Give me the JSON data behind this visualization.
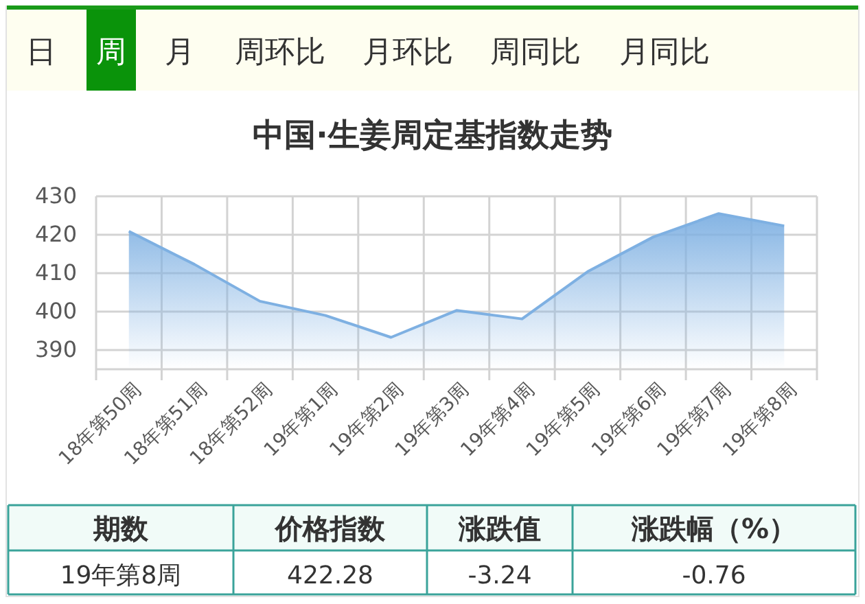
{
  "chart_data": {
    "type": "area",
    "title": "中国·生姜周定基指数走势",
    "categories": [
      "18年第50周",
      "18年第51周",
      "18年第52周",
      "19年第1周",
      "19年第2周",
      "19年第3周",
      "19年第4周",
      "19年第5周",
      "19年第6周",
      "19年第7周",
      "19年第8周"
    ],
    "series": [
      {
        "color": "#7eb0e2",
        "values": [
          420.9,
          412.3,
          402.7,
          399.0,
          393.3,
          400.3,
          398.1,
          410.4,
          419.4,
          425.5,
          422.3
        ]
      }
    ],
    "ylim": [
      385,
      430
    ],
    "yticks": [
      390,
      400,
      410,
      420,
      430
    ],
    "grid": true,
    "annotations": [
      "日",
      "周",
      "月",
      "周环比",
      "月环比",
      "周同比",
      "月同比",
      "期数",
      "价格指数",
      "涨跌值",
      "涨跌幅（%）",
      "19年第8周",
      "422.28",
      "-3.24",
      "-0.76"
    ]
  }
}
